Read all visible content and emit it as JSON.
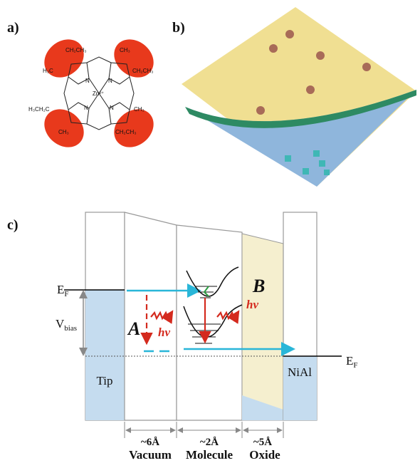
{
  "panels": {
    "a": "a)",
    "b": "b)",
    "c": "c)"
  },
  "molecule": {
    "center": "Zn²⁺",
    "nitrogens": [
      "N",
      "N",
      "N",
      "N"
    ],
    "substituents": [
      "CH₂CH₃",
      "H₃C",
      "CH₃",
      "CH₂CH₃",
      "H₃CH₂C",
      "CH₃",
      "CH₃",
      "CH₂CH₃"
    ]
  },
  "diagram": {
    "fermi_left": {
      "main": "E",
      "sub": "F"
    },
    "bias": {
      "main": "V",
      "sub": "bias"
    },
    "process_a": "A",
    "photon_a": "hν",
    "process_b": "B",
    "photon_b": "hν",
    "tip": "Tip",
    "substrate": "NiAl",
    "fermi_right": {
      "main": "E",
      "sub": "F"
    },
    "widths": [
      "~6Å",
      "~2Å",
      "~5Å"
    ],
    "regions": [
      "Vacuum",
      "Molecule",
      "Oxide"
    ]
  }
}
